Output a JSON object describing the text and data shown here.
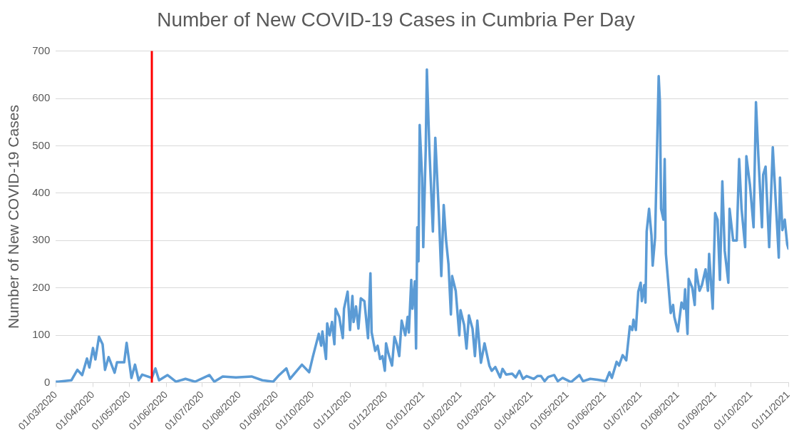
{
  "chart_data": {
    "type": "line",
    "title": "Number of New COVID-19 Cases in Cumbria Per Day",
    "ylabel": "Number of New COVID-19 Cases",
    "marker": "none",
    "grid": "y",
    "color": "#5b9bd5",
    "x": [
      "2020-03-01",
      "2020-03-03",
      "2020-03-14",
      "2020-03-19",
      "2020-03-23",
      "2020-03-27",
      "2020-03-29",
      "2020-04-01",
      "2020-04-03",
      "2020-04-06",
      "2020-04-09",
      "2020-04-11",
      "2020-04-14",
      "2020-04-19",
      "2020-04-21",
      "2020-04-27",
      "2020-04-29",
      "2020-05-03",
      "2020-05-06",
      "2020-05-09",
      "2020-05-12",
      "2020-05-20",
      "2020-05-23",
      "2020-05-26",
      "2020-06-02",
      "2020-06-09",
      "2020-06-17",
      "2020-06-25",
      "2020-07-07",
      "2020-07-11",
      "2020-07-18",
      "2020-07-29",
      "2020-08-11",
      "2020-08-20",
      "2020-08-29",
      "2020-09-03",
      "2020-09-09",
      "2020-09-12",
      "2020-09-22",
      "2020-09-28",
      "2020-10-01",
      "2020-10-06",
      "2020-10-08",
      "2020-10-09",
      "2020-10-12",
      "2020-10-13",
      "2020-10-15",
      "2020-10-17",
      "2020-10-19",
      "2020-10-20",
      "2020-10-23",
      "2020-10-26",
      "2020-10-27",
      "2020-10-30",
      "2020-11-01",
      "2020-11-03",
      "2020-11-04",
      "2020-11-06",
      "2020-11-08",
      "2020-11-10",
      "2020-11-13",
      "2020-11-16",
      "2020-11-18",
      "2020-11-19",
      "2020-11-22",
      "2020-11-24",
      "2020-11-26",
      "2020-11-28",
      "2020-11-30",
      "2020-12-01",
      "2020-12-03",
      "2020-12-06",
      "2020-12-08",
      "2020-12-10",
      "2020-12-12",
      "2020-12-14",
      "2020-12-17",
      "2020-12-19",
      "2020-12-20",
      "2020-12-22",
      "2020-12-23",
      "2020-12-25",
      "2020-12-26",
      "2020-12-27",
      "2020-12-28",
      "2020-12-29",
      "2020-12-31",
      "2021-01-01",
      "2021-01-03",
      "2021-01-04",
      "2021-01-06",
      "2021-01-09",
      "2021-01-11",
      "2021-01-14",
      "2021-01-16",
      "2021-01-18",
      "2021-01-20",
      "2021-01-22",
      "2021-01-24",
      "2021-01-25",
      "2021-01-28",
      "2021-01-31",
      "2021-02-01",
      "2021-02-04",
      "2021-02-06",
      "2021-02-08",
      "2021-02-11",
      "2021-02-13",
      "2021-02-15",
      "2021-02-18",
      "2021-02-21",
      "2021-02-25",
      "2021-02-27",
      "2021-03-02",
      "2021-03-06",
      "2021-03-08",
      "2021-03-11",
      "2021-03-16",
      "2021-03-19",
      "2021-03-22",
      "2021-03-25",
      "2021-03-28",
      "2021-04-03",
      "2021-04-06",
      "2021-04-09",
      "2021-04-12",
      "2021-04-15",
      "2021-04-20",
      "2021-04-23",
      "2021-04-27",
      "2021-05-04",
      "2021-05-11",
      "2021-05-14",
      "2021-05-20",
      "2021-05-26",
      "2021-06-02",
      "2021-06-05",
      "2021-06-07",
      "2021-06-11",
      "2021-06-13",
      "2021-06-16",
      "2021-06-19",
      "2021-06-22",
      "2021-06-24",
      "2021-06-25",
      "2021-06-27",
      "2021-06-29",
      "2021-07-01",
      "2021-07-02",
      "2021-07-04",
      "2021-07-05",
      "2021-07-06",
      "2021-07-08",
      "2021-07-10",
      "2021-07-11",
      "2021-07-13",
      "2021-07-16",
      "2021-07-17",
      "2021-07-18",
      "2021-07-20",
      "2021-07-21",
      "2021-07-22",
      "2021-07-26",
      "2021-07-28",
      "2021-07-29",
      "2021-08-01",
      "2021-08-04",
      "2021-08-06",
      "2021-08-07",
      "2021-08-09",
      "2021-08-10",
      "2021-08-13",
      "2021-08-15",
      "2021-08-16",
      "2021-08-19",
      "2021-08-21",
      "2021-08-24",
      "2021-08-26",
      "2021-08-27",
      "2021-08-30",
      "2021-09-01",
      "2021-09-03",
      "2021-09-05",
      "2021-09-07",
      "2021-09-09",
      "2021-09-12",
      "2021-09-13",
      "2021-09-16",
      "2021-09-19",
      "2021-09-21",
      "2021-09-23",
      "2021-09-26",
      "2021-09-27",
      "2021-09-30",
      "2021-10-03",
      "2021-10-05",
      "2021-10-07",
      "2021-10-10",
      "2021-10-11",
      "2021-10-13",
      "2021-10-16",
      "2021-10-19",
      "2021-10-24",
      "2021-10-25",
      "2021-10-27",
      "2021-10-29",
      "2021-10-31",
      "2021-11-01"
    ],
    "values": [
      2,
      2,
      5,
      27,
      16,
      51,
      32,
      73,
      49,
      97,
      81,
      27,
      54,
      21,
      43,
      43,
      84,
      10,
      38,
      5,
      17,
      10,
      30,
      5,
      16,
      2,
      8,
      2,
      16,
      2,
      13,
      11,
      13,
      5,
      2,
      16,
      30,
      8,
      38,
      22,
      54,
      103,
      78,
      108,
      50,
      125,
      100,
      128,
      81,
      156,
      139,
      94,
      156,
      192,
      111,
      183,
      128,
      161,
      114,
      178,
      172,
      94,
      231,
      106,
      67,
      78,
      50,
      56,
      25,
      83,
      61,
      36,
      97,
      81,
      56,
      131,
      100,
      139,
      106,
      217,
      156,
      214,
      72,
      328,
      256,
      544,
      433,
      286,
      489,
      661,
      500,
      319,
      517,
      356,
      225,
      375,
      300,
      250,
      144,
      225,
      194,
      100,
      153,
      122,
      72,
      142,
      114,
      56,
      131,
      42,
      83,
      36,
      25,
      33,
      11,
      29,
      17,
      19,
      11,
      25,
      8,
      14,
      8,
      14,
      14,
      3,
      12,
      16,
      3,
      10,
      1,
      16,
      3,
      8,
      6,
      3,
      22,
      10,
      44,
      36,
      58,
      47,
      119,
      111,
      133,
      111,
      192,
      211,
      172,
      206,
      169,
      319,
      367,
      311,
      247,
      306,
      647,
      594,
      367,
      344,
      472,
      272,
      147,
      164,
      139,
      108,
      169,
      156,
      197,
      103,
      219,
      200,
      164,
      239,
      194,
      206,
      239,
      194,
      272,
      156,
      358,
      344,
      217,
      425,
      278,
      211,
      367,
      300,
      300,
      472,
      367,
      286,
      478,
      417,
      328,
      592,
      478,
      328,
      439,
      456,
      286,
      497,
      264,
      433,
      322,
      344,
      292,
      283
    ],
    "xlim": [
      "2020-03-01",
      "2021-11-01"
    ],
    "xticks": [
      {
        "value": "2020-03-01",
        "label": "01/03/2020"
      },
      {
        "value": "2020-04-01",
        "label": "01/04/2020"
      },
      {
        "value": "2020-05-01",
        "label": "01/05/2020"
      },
      {
        "value": "2020-06-01",
        "label": "01/06/2020"
      },
      {
        "value": "2020-07-01",
        "label": "01/07/2020"
      },
      {
        "value": "2020-08-01",
        "label": "01/08/2020"
      },
      {
        "value": "2020-09-01",
        "label": "01/09/2020"
      },
      {
        "value": "2020-10-01",
        "label": "01/10/2020"
      },
      {
        "value": "2020-11-01",
        "label": "01/11/2020"
      },
      {
        "value": "2020-12-01",
        "label": "01/12/2020"
      },
      {
        "value": "2021-01-01",
        "label": "01/01/2021"
      },
      {
        "value": "2021-02-01",
        "label": "01/02/2021"
      },
      {
        "value": "2021-03-01",
        "label": "01/03/2021"
      },
      {
        "value": "2021-04-01",
        "label": "01/04/2021"
      },
      {
        "value": "2021-05-01",
        "label": "01/05/2021"
      },
      {
        "value": "2021-06-01",
        "label": "01/06/2021"
      },
      {
        "value": "2021-07-01",
        "label": "01/07/2021"
      },
      {
        "value": "2021-08-01",
        "label": "01/08/2021"
      },
      {
        "value": "2021-09-01",
        "label": "01/09/2021"
      },
      {
        "value": "2021-10-01",
        "label": "01/10/2021"
      },
      {
        "value": "2021-11-01",
        "label": "01/11/2021"
      }
    ],
    "ylim": [
      0,
      700
    ],
    "yticks": [
      0,
      100,
      200,
      300,
      400,
      500,
      600,
      700
    ],
    "ref_lines": [
      {
        "axis": "x",
        "value": "2020-05-20",
        "color": "#ff0000"
      }
    ]
  }
}
